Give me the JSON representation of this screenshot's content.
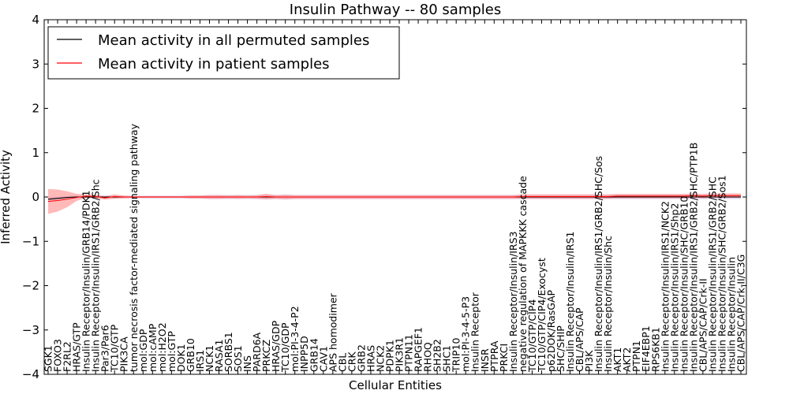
{
  "chart_data": {
    "type": "line",
    "title": "Insulin Pathway -- 80 samples",
    "xlabel": "Cellular Entities",
    "ylabel": "Inferred Activity",
    "ylim": [
      -4,
      4
    ],
    "yticks": [
      -4,
      -3,
      -2,
      -1,
      0,
      1,
      2,
      3,
      4
    ],
    "ytick_labels": [
      "−4",
      "−3",
      "−2",
      "−1",
      "0",
      "1",
      "2",
      "3",
      "4"
    ],
    "legend_position": "top-left",
    "categories": [
      "SGK1",
      "FOXO3",
      "F2RL2",
      "HRAS/GTP",
      "Insulin Receptor/Insulin/GRB14/PDK1",
      "Insulin Receptor/Insulin/IRS1/GRB2/Shc",
      "Par3/Par6",
      "TC10/GTP",
      "PIK3CA",
      "tumor necrosis factor-mediated signaling pathway",
      "mol:GDP",
      "mol:cAMP",
      "mol:H2O2",
      "mol:GTP",
      "DOK1",
      "GRB10",
      "IRS1",
      "NCK1",
      "RASA1",
      "SORBS1",
      "SOS1",
      "INS",
      "PARD6A",
      "PRKCZ",
      "HRAS/GDP",
      "TC10/GDP",
      "mol:PI-3-4-P2",
      "INPP5D",
      "GRB14",
      "CAV1",
      "APS homodimer",
      "CBL",
      "CRK",
      "GRB2",
      "HRAS",
      "NCK2",
      "PDPK1",
      "PIK3R1",
      "PTPN11",
      "RAPGEF1",
      "RHOQ",
      "SH2B2",
      "SHC1",
      "TRIP10",
      "mol:PI-3-4-5-P3",
      "Insulin Receptor",
      "INSR",
      "PTPRA",
      "PRKCI",
      "Insulin Receptor/Insulin/IRS3",
      "negative regulation of MAPKKK cascade",
      "TC10/GTP/CIP4",
      "TC10/GTP/CIP4/Exocyst",
      "p62DOK/RasGAP",
      "SHC/SHIP",
      "Insulin Receptor/Insulin/IRS1",
      "CBL/APS/CAP",
      "PI3K",
      "Insulin Receptor/Insulin/IRS1/GRB2/SHC/Sos",
      "Insulin Receptor/Insulin/Shc",
      "AKT1",
      "AKT2",
      "PTPN1",
      "EIF4EBP1",
      "RPS6KB1",
      "Insulin Receptor/Insulin/IRS1/NCK2",
      "Insulin Receptor/Insulin/IRS1/Shp2",
      "Insulin Receptor/Insulin/SHC/GRB10",
      "Insulin Receptor/Insulin/IRS1/GRB2/SHC/PTP1B",
      "CBL/APS/CAP/Crk-II",
      "Insulin Receptor/Insulin/IRS1/GRB2/SHC",
      "Insulin Receptor/Insulin/SHC/GRB2/Sos1",
      "Insulin Receptor/Insulin",
      "CBL/APS/CAP/Crk-II/C3G"
    ],
    "series": [
      {
        "name": "Mean activity in all permuted samples",
        "color": "#000000",
        "values": [
          -0.05,
          -0.03,
          -0.01,
          0.0,
          0.0,
          0.0,
          0.0,
          0.0,
          0.0,
          0.0,
          0.0,
          0.0,
          0.0,
          0.0,
          0.0,
          0.0,
          0.0,
          0.0,
          0.0,
          0.0,
          0.0,
          0.0,
          0.0,
          0.0,
          0.0,
          0.0,
          0.0,
          0.0,
          0.0,
          0.0,
          0.0,
          0.0,
          0.0,
          0.0,
          0.0,
          0.0,
          0.0,
          0.0,
          0.0,
          0.0,
          0.0,
          0.0,
          0.0,
          0.0,
          0.0,
          0.0,
          0.0,
          0.0,
          0.0,
          0.0,
          0.0,
          0.0,
          0.0,
          0.0,
          0.0,
          0.0,
          0.0,
          0.0,
          0.0,
          0.0,
          0.0,
          0.0,
          0.0,
          0.0,
          0.0,
          0.0,
          0.0,
          0.0,
          0.0,
          0.0,
          0.0,
          0.0,
          0.0,
          0.0
        ],
        "band_halfwidth": [
          0.05,
          0.04,
          0.03,
          0.03,
          0.03,
          0.03,
          0.03,
          0.03,
          0.03,
          0.03,
          0.03,
          0.03,
          0.03,
          0.03,
          0.03,
          0.04,
          0.04,
          0.05,
          0.05,
          0.05,
          0.05,
          0.05,
          0.05,
          0.06,
          0.05,
          0.06,
          0.05,
          0.05,
          0.05,
          0.05,
          0.05,
          0.05,
          0.05,
          0.05,
          0.05,
          0.05,
          0.05,
          0.05,
          0.05,
          0.05,
          0.05,
          0.05,
          0.05,
          0.05,
          0.05,
          0.05,
          0.05,
          0.05,
          0.05,
          0.05,
          0.05,
          0.05,
          0.05,
          0.05,
          0.05,
          0.05,
          0.05,
          0.05,
          0.05,
          0.05,
          0.05,
          0.05,
          0.05,
          0.05,
          0.05,
          0.05,
          0.05,
          0.05,
          0.05,
          0.05,
          0.05,
          0.05,
          0.05,
          0.05
        ]
      },
      {
        "name": "Mean activity in patient samples",
        "color": "#ff0000",
        "values": [
          -0.1,
          -0.08,
          -0.05,
          -0.01,
          0.02,
          0.01,
          -0.02,
          0.01,
          0.0,
          0.0,
          0.0,
          0.0,
          0.0,
          0.0,
          0.0,
          0.0,
          0.0,
          0.0,
          0.0,
          0.0,
          0.0,
          0.0,
          0.0,
          0.01,
          0.0,
          0.0,
          0.0,
          0.0,
          0.0,
          0.0,
          0.0,
          0.0,
          0.0,
          0.0,
          0.0,
          0.0,
          0.0,
          0.0,
          0.0,
          0.0,
          0.0,
          0.0,
          0.0,
          0.0,
          0.0,
          0.0,
          0.0,
          0.0,
          0.0,
          0.0,
          0.01,
          0.01,
          0.01,
          0.01,
          0.01,
          0.01,
          0.01,
          0.01,
          0.01,
          0.01,
          0.02,
          0.02,
          0.02,
          0.02,
          0.02,
          0.02,
          0.02,
          0.02,
          0.03,
          0.02,
          0.03,
          0.03,
          0.03,
          0.03
        ],
        "band_halfwidth": [
          0.28,
          0.25,
          0.18,
          0.08,
          0.04,
          0.04,
          0.04,
          0.05,
          0.03,
          0.02,
          0.02,
          0.02,
          0.02,
          0.02,
          0.02,
          0.03,
          0.03,
          0.04,
          0.04,
          0.03,
          0.04,
          0.03,
          0.04,
          0.06,
          0.04,
          0.05,
          0.04,
          0.04,
          0.04,
          0.04,
          0.04,
          0.04,
          0.04,
          0.04,
          0.04,
          0.04,
          0.04,
          0.04,
          0.04,
          0.04,
          0.04,
          0.04,
          0.04,
          0.04,
          0.04,
          0.04,
          0.04,
          0.04,
          0.04,
          0.04,
          0.05,
          0.05,
          0.05,
          0.05,
          0.05,
          0.05,
          0.05,
          0.05,
          0.05,
          0.05,
          0.05,
          0.05,
          0.05,
          0.05,
          0.05,
          0.05,
          0.05,
          0.05,
          0.05,
          0.05,
          0.05,
          0.05,
          0.05,
          0.05
        ]
      }
    ]
  }
}
